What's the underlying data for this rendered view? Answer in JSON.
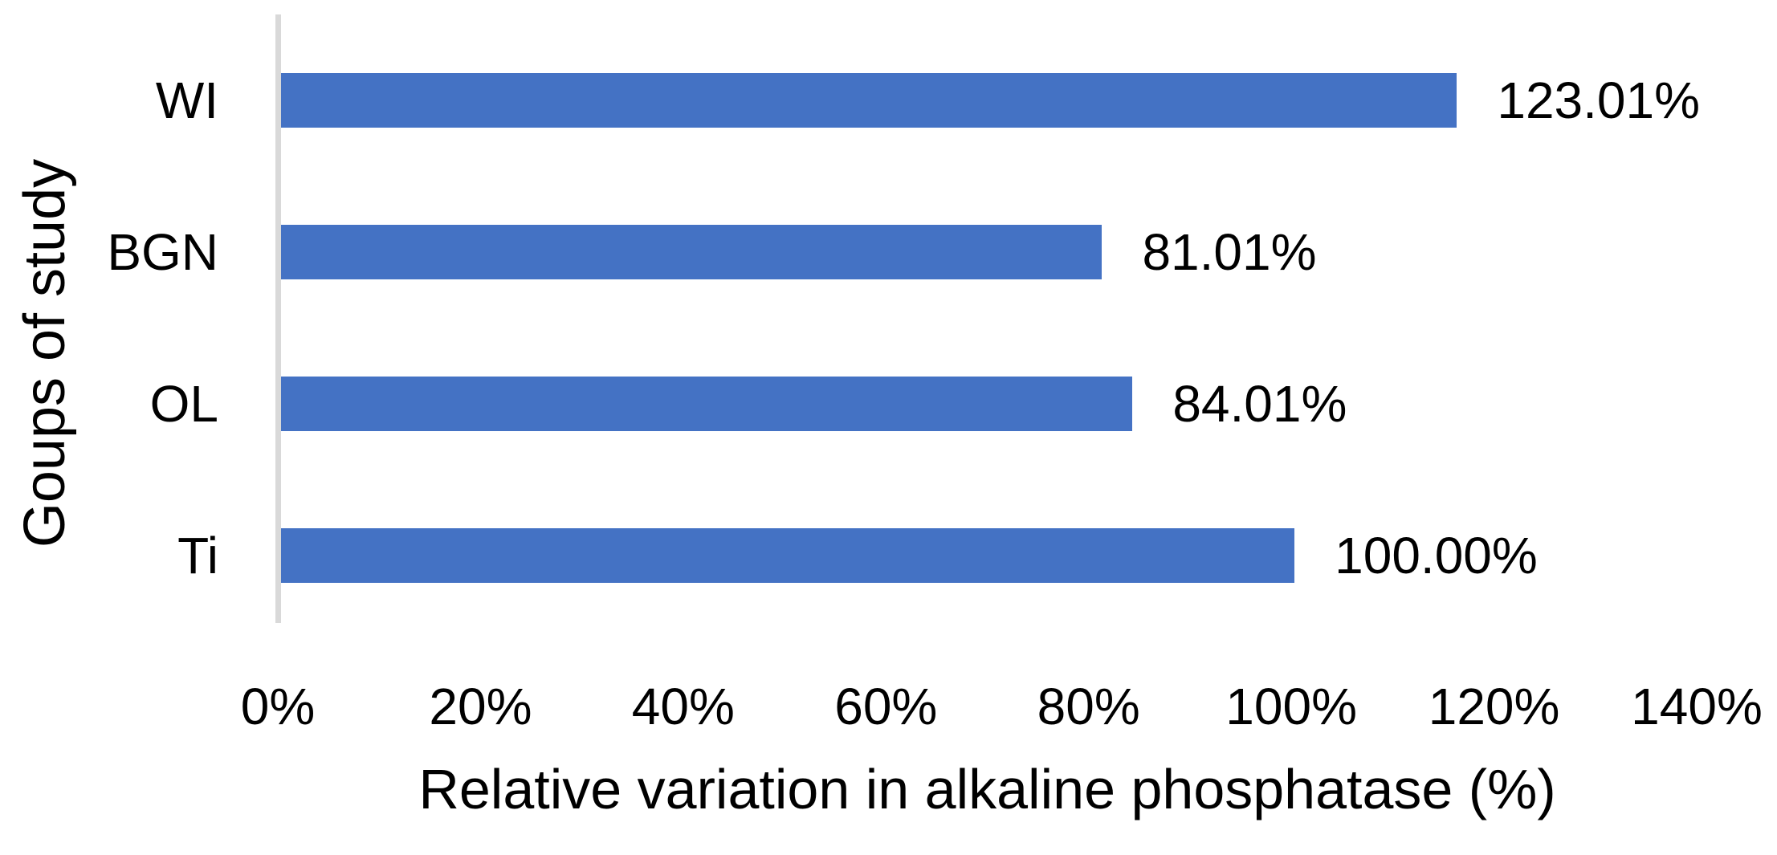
{
  "chart_data": {
    "type": "bar",
    "orientation": "horizontal",
    "title": "",
    "categories": [
      "WI",
      "BGN",
      "OL",
      "Ti"
    ],
    "values": [
      123.01,
      81.01,
      84.01,
      100.0
    ],
    "value_labels": [
      "123.01%",
      "81.01%",
      "84.01%",
      "100.00%"
    ],
    "xlabel": "Relative variation in alkaline phosphatase (%)",
    "ylabel": "Goups of study",
    "xlim": [
      0,
      140
    ],
    "xticks": [
      "0%",
      "20%",
      "40%",
      "60%",
      "80%",
      "100%",
      "120%",
      "140%"
    ],
    "grid": false,
    "legend": false,
    "bar_color": "#4472C4",
    "axis_line_color": "#D9D9D9",
    "text_color": "#000000",
    "background_color": "#FFFFFF"
  }
}
